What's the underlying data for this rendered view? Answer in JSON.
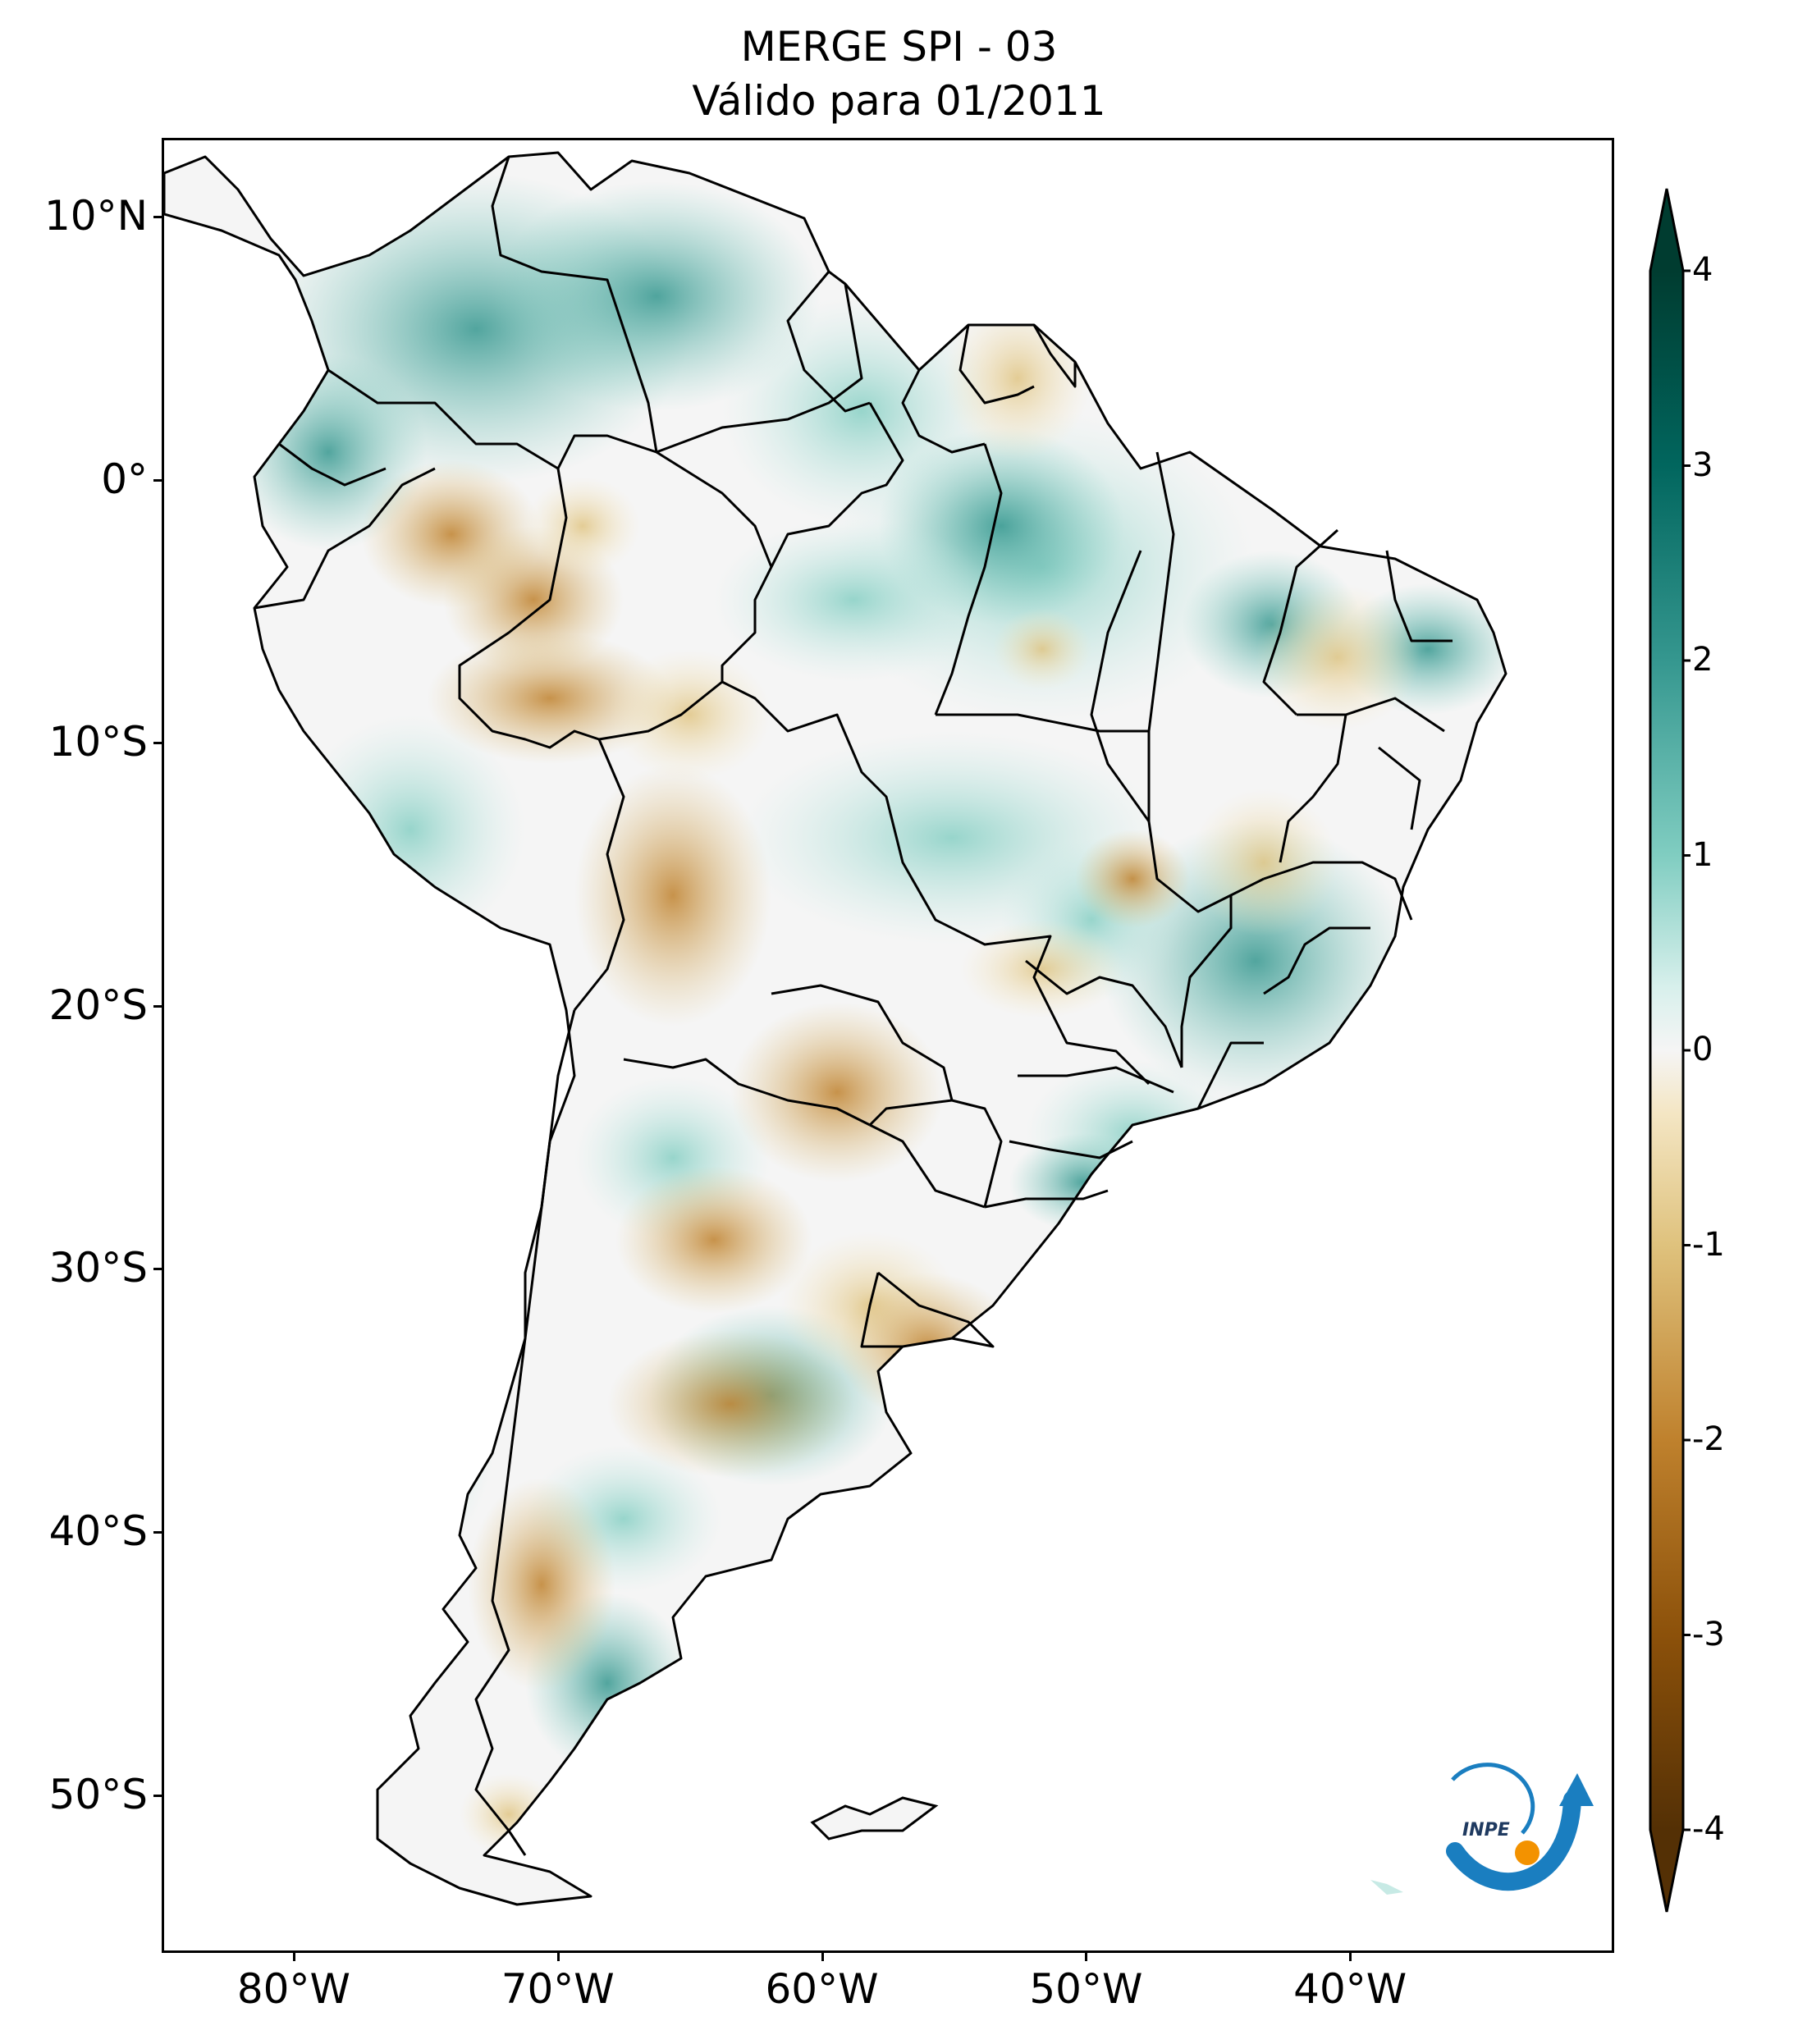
{
  "title_line1": "MERGE   SPI - 03",
  "title_line2": "Válido para 01/2011",
  "map": {
    "region": "South America",
    "extent_lon": [
      -85,
      -30
    ],
    "extent_lat": [
      -56,
      13
    ],
    "lat_ticks": [
      {
        "value": 10,
        "label": "10°N"
      },
      {
        "value": 0,
        "label": "0°"
      },
      {
        "value": -10,
        "label": "10°S"
      },
      {
        "value": -20,
        "label": "20°S"
      },
      {
        "value": -30,
        "label": "30°S"
      },
      {
        "value": -40,
        "label": "40°S"
      },
      {
        "value": -50,
        "label": "50°S"
      }
    ],
    "lon_ticks": [
      {
        "value": -80,
        "label": "80°W"
      },
      {
        "value": -70,
        "label": "70°W"
      },
      {
        "value": -60,
        "label": "60°W"
      },
      {
        "value": -50,
        "label": "50°W"
      },
      {
        "value": -40,
        "label": "40°W"
      }
    ]
  },
  "colorbar": {
    "min": -4,
    "max": 4,
    "extend": "both",
    "colormap": "BrBG",
    "ticks": [
      {
        "value": 4,
        "label": "4"
      },
      {
        "value": 3,
        "label": "3"
      },
      {
        "value": 2,
        "label": "2"
      },
      {
        "value": 1,
        "label": "1"
      },
      {
        "value": 0,
        "label": "0"
      },
      {
        "value": -1,
        "label": "-1"
      },
      {
        "value": -2,
        "label": "-2"
      },
      {
        "value": -3,
        "label": "-3"
      },
      {
        "value": -4,
        "label": "-4"
      }
    ],
    "colors": {
      "max": "#003c30",
      "p3": "#01665e",
      "p2": "#35978f",
      "p1": "#80cdc1",
      "zero": "#f5f5f5",
      "m1": "#dfc27d",
      "m2": "#bf812d",
      "m3": "#8c510a",
      "min": "#543005"
    }
  },
  "logo": {
    "text": "INPE"
  }
}
